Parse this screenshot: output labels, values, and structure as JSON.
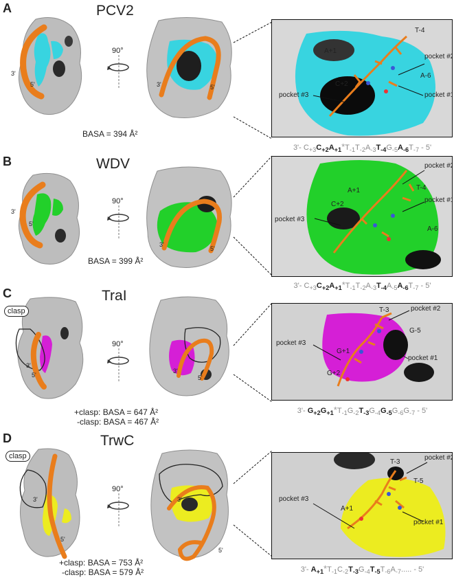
{
  "panels": [
    {
      "id": "A",
      "label": "A",
      "title": "PCV2",
      "accent": "#38d4e0",
      "rotation": "90°",
      "basa": [
        "BASA = 394 Å²"
      ],
      "ends": [
        "3'",
        "5'"
      ],
      "ends_right": [
        "3'",
        "5'"
      ],
      "nucleotides": [
        "A+1",
        "C+2",
        "T-4",
        "A-6"
      ],
      "pockets": [
        "pocket #3",
        "pocket #2",
        "pocket #1"
      ],
      "sequence": "3'- C+3 C+2 A+1 * T-1 T-2 A-3 T-4 G-5 A-6 T-7 - 5'"
    },
    {
      "id": "B",
      "label": "B",
      "title": "WDV",
      "accent": "#22d02a",
      "rotation": "90°",
      "basa": [
        "BASA = 399 Å²"
      ],
      "ends": [
        "3'",
        "5'"
      ],
      "ends_right": [
        "3'",
        "5'"
      ],
      "nucleotides": [
        "A+1",
        "C+2",
        "T-4",
        "A-6"
      ],
      "pockets": [
        "pocket #3",
        "pocket #2",
        "pocket #1"
      ],
      "sequence": "3'- C+3 C+2 A+1 * T-1 T-2 A-3 T-4 A-5 A-6 T-7 - 5'"
    },
    {
      "id": "C",
      "label": "C",
      "title": "TraI",
      "accent": "#d51fd6",
      "rotation": "90°",
      "clasp": "clasp",
      "basa": [
        "+clasp: BASA = 647 Å²",
        "-clasp: BASA = 467 Å²"
      ],
      "ends": [
        "3'",
        "5'"
      ],
      "ends_right": [
        "3'",
        "5'"
      ],
      "nucleotides": [
        "T-3",
        "G+1",
        "G-5",
        "G+2"
      ],
      "pockets": [
        "pocket #3",
        "pocket #2",
        "pocket #1"
      ],
      "sequence": "3'- G+2 G+1 * T-1 G-2 T-3 G-4 G-5 G-6 G-7 - 5'"
    },
    {
      "id": "D",
      "label": "D",
      "title": "TrwC",
      "accent": "#ecec20",
      "rotation": "90°",
      "clasp": "clasp",
      "basa": [
        "+clasp: BASA = 753 Å²",
        "-clasp: BASA = 579 Å²"
      ],
      "ends": [
        "3'",
        "5'"
      ],
      "ends_right": [
        "3'",
        "5'"
      ],
      "nucleotides": [
        "T-3",
        "T-5",
        "A+1"
      ],
      "pockets": [
        "pocket #3",
        "pocket #2",
        "pocket #1"
      ],
      "sequence": "3'- A+1 * T-1 C-2 T-3 G-4 T-5 T-6 A-7..... - 5'"
    }
  ]
}
